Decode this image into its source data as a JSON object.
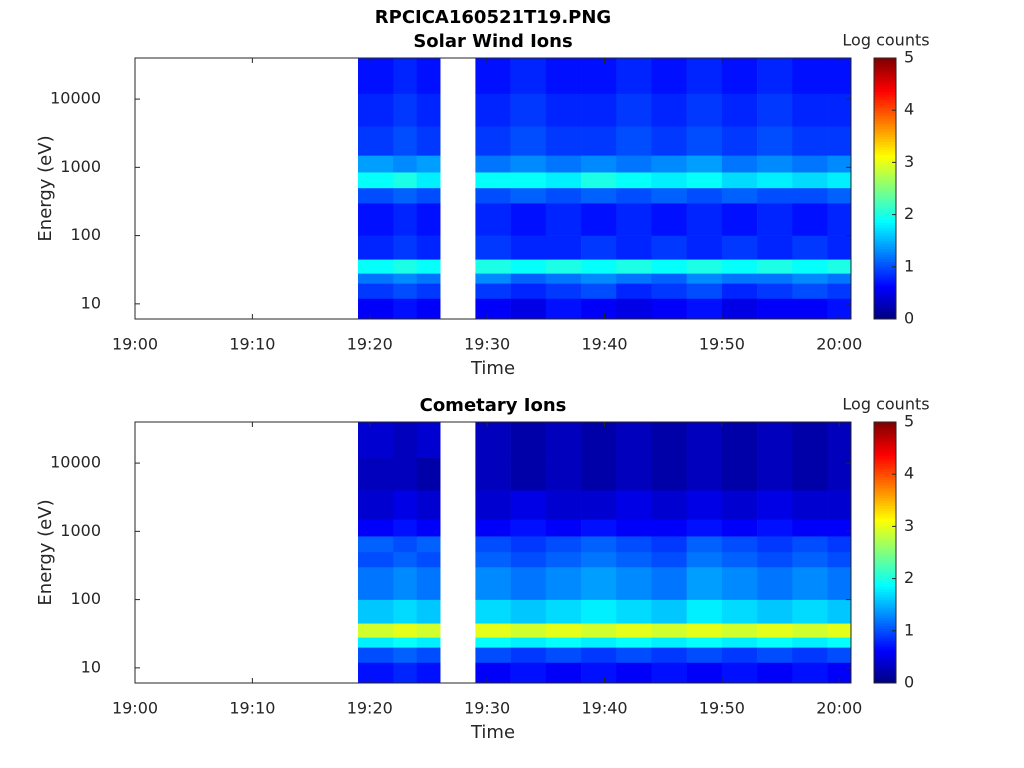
{
  "title": "RPCICA160521T19.PNG",
  "chart_data": [
    {
      "type": "heatmap",
      "title": "Solar Wind Ions",
      "xlabel": "Time",
      "ylabel": "Energy (eV)",
      "xlim": [
        "19:00",
        "20:01"
      ],
      "xticks": [
        "19:00",
        "19:10",
        "19:20",
        "19:30",
        "19:40",
        "19:50",
        "20:00"
      ],
      "ylim": [
        6,
        40000
      ],
      "yticks": [
        10,
        100,
        1000,
        10000
      ],
      "yscale": "log",
      "colormap": "jet",
      "colorbar": {
        "label": "Log counts",
        "clim": [
          0,
          5
        ],
        "ticks": [
          0,
          1,
          2,
          3,
          4,
          5
        ]
      },
      "x_bins": [
        "19:19",
        "19:22",
        "19:24",
        "19:26",
        "19:29",
        "19:32",
        "19:35",
        "19:38",
        "19:41",
        "19:44",
        "19:47",
        "19:50",
        "19:53",
        "19:56",
        "19:59",
        "20:01"
      ],
      "y_bins": [
        6,
        12,
        20,
        28,
        45,
        100,
        300,
        500,
        850,
        1500,
        4000,
        12000,
        40000
      ],
      "values": [
        [
          0.6,
          0.7,
          0.6,
          null,
          0.6,
          0.5,
          0.7,
          0.6,
          0.5,
          0.6,
          0.7,
          0.5,
          0.6,
          0.6,
          0.7
        ],
        [
          0.9,
          1.0,
          0.9,
          null,
          0.9,
          0.8,
          0.9,
          1.0,
          0.8,
          0.9,
          1.0,
          0.8,
          0.9,
          1.0,
          0.9
        ],
        [
          1.2,
          1.3,
          1.2,
          null,
          1.3,
          1.1,
          1.2,
          1.3,
          1.2,
          1.1,
          1.3,
          1.2,
          1.2,
          1.3,
          1.2
        ],
        [
          1.9,
          2.0,
          1.9,
          null,
          2.0,
          1.9,
          2.0,
          1.9,
          2.0,
          1.9,
          2.0,
          1.9,
          2.0,
          1.9,
          2.0
        ],
        [
          0.8,
          0.9,
          0.8,
          null,
          0.9,
          0.8,
          0.8,
          0.9,
          0.8,
          0.9,
          0.8,
          0.9,
          0.8,
          0.9,
          0.8
        ],
        [
          0.7,
          0.8,
          0.7,
          null,
          0.8,
          0.7,
          0.8,
          0.7,
          0.8,
          0.7,
          0.8,
          0.7,
          0.8,
          0.7,
          0.8
        ],
        [
          1.0,
          1.1,
          1.0,
          null,
          1.0,
          1.1,
          1.0,
          1.1,
          1.0,
          1.1,
          1.0,
          1.1,
          1.0,
          1.0,
          1.1
        ],
        [
          1.9,
          2.0,
          1.8,
          null,
          1.9,
          1.9,
          1.8,
          2.0,
          1.9,
          1.8,
          1.9,
          1.7,
          1.8,
          1.7,
          1.8
        ],
        [
          1.4,
          1.3,
          1.4,
          null,
          1.2,
          1.3,
          1.2,
          1.3,
          1.2,
          1.3,
          1.4,
          1.2,
          1.3,
          1.2,
          1.3
        ],
        [
          0.9,
          1.0,
          0.9,
          null,
          0.9,
          1.0,
          0.9,
          0.9,
          1.0,
          0.9,
          1.0,
          0.9,
          1.0,
          0.9,
          0.9
        ],
        [
          0.8,
          0.9,
          0.8,
          null,
          0.8,
          0.9,
          0.8,
          0.8,
          0.9,
          0.8,
          0.9,
          0.8,
          0.9,
          0.8,
          0.8
        ],
        [
          0.7,
          0.8,
          0.7,
          null,
          0.7,
          0.8,
          0.7,
          0.7,
          0.8,
          0.7,
          0.8,
          0.7,
          0.8,
          0.7,
          0.7
        ]
      ]
    },
    {
      "type": "heatmap",
      "title": "Cometary Ions",
      "xlabel": "Time",
      "ylabel": "Energy (eV)",
      "xlim": [
        "19:00",
        "20:01"
      ],
      "xticks": [
        "19:00",
        "19:10",
        "19:20",
        "19:30",
        "19:40",
        "19:50",
        "20:00"
      ],
      "ylim": [
        6,
        40000
      ],
      "yticks": [
        10,
        100,
        1000,
        10000
      ],
      "yscale": "log",
      "colormap": "jet",
      "colorbar": {
        "label": "Log counts",
        "clim": [
          0,
          5
        ],
        "ticks": [
          0,
          1,
          2,
          3,
          4,
          5
        ]
      },
      "x_bins": [
        "19:19",
        "19:22",
        "19:24",
        "19:26",
        "19:29",
        "19:32",
        "19:35",
        "19:38",
        "19:41",
        "19:44",
        "19:47",
        "19:50",
        "19:53",
        "19:56",
        "19:59",
        "20:01"
      ],
      "y_bins": [
        6,
        12,
        20,
        28,
        45,
        100,
        300,
        500,
        850,
        1500,
        4000,
        12000,
        40000
      ],
      "values": [
        [
          0.7,
          0.8,
          0.7,
          null,
          0.6,
          0.7,
          0.6,
          0.7,
          0.6,
          0.7,
          0.6,
          0.7,
          0.6,
          0.7,
          0.6
        ],
        [
          1.0,
          1.1,
          1.0,
          null,
          1.0,
          0.9,
          1.0,
          0.9,
          1.0,
          0.9,
          1.0,
          0.9,
          1.0,
          0.9,
          1.0
        ],
        [
          1.8,
          1.9,
          1.8,
          null,
          1.9,
          1.8,
          1.9,
          1.8,
          1.9,
          1.8,
          1.9,
          1.8,
          1.9,
          1.8,
          1.9
        ],
        [
          2.9,
          3.0,
          2.9,
          null,
          3.0,
          2.9,
          3.0,
          2.9,
          3.0,
          2.9,
          3.0,
          2.9,
          3.0,
          2.9,
          3.0
        ],
        [
          1.6,
          1.7,
          1.6,
          null,
          1.7,
          1.6,
          1.7,
          1.8,
          1.7,
          1.6,
          1.8,
          1.7,
          1.6,
          1.7,
          1.6
        ],
        [
          1.2,
          1.3,
          1.2,
          null,
          1.3,
          1.2,
          1.3,
          1.4,
          1.3,
          1.2,
          1.4,
          1.3,
          1.2,
          1.3,
          1.2
        ],
        [
          1.0,
          1.1,
          1.0,
          null,
          1.1,
          1.0,
          1.1,
          1.2,
          1.1,
          1.0,
          1.2,
          1.1,
          1.0,
          1.1,
          1.0
        ],
        [
          1.1,
          1.0,
          1.1,
          null,
          1.0,
          0.9,
          1.0,
          1.1,
          1.0,
          0.9,
          1.1,
          1.0,
          0.9,
          1.0,
          0.9
        ],
        [
          0.6,
          0.7,
          0.6,
          null,
          0.6,
          0.7,
          0.6,
          0.7,
          0.6,
          0.6,
          0.7,
          0.6,
          0.7,
          0.6,
          0.6
        ],
        [
          0.4,
          0.5,
          0.4,
          null,
          0.4,
          0.5,
          0.4,
          0.4,
          0.5,
          0.4,
          0.5,
          0.4,
          0.5,
          0.4,
          0.4
        ],
        [
          0.3,
          0.3,
          0.2,
          null,
          0.3,
          0.2,
          0.3,
          0.2,
          0.3,
          0.2,
          0.3,
          0.2,
          0.3,
          0.2,
          0.3
        ],
        [
          0.4,
          0.3,
          0.4,
          null,
          0.3,
          0.2,
          0.3,
          0.2,
          0.3,
          0.2,
          0.3,
          0.2,
          0.3,
          0.2,
          0.3
        ]
      ]
    }
  ]
}
